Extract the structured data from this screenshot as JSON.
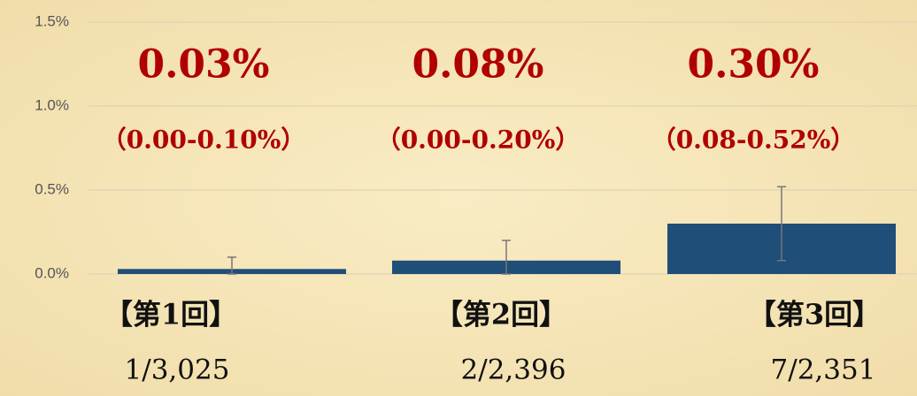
{
  "chart_data": {
    "type": "bar",
    "categories": [
      "【第1回】",
      "【第2回】",
      "【第3回】"
    ],
    "count_labels": [
      "1/3,025",
      "2/2,396",
      "7/2,351"
    ],
    "series": [
      {
        "color": "#1f4e79",
        "values": [
          0.03,
          0.08,
          0.3
        ],
        "value_labels": [
          "0.03%",
          "0.08%",
          "0.30%"
        ],
        "ci_low": [
          0.0,
          0.0,
          0.08
        ],
        "ci_high": [
          0.1,
          0.2,
          0.52
        ],
        "interval_labels": [
          "（0.00-0.10%）",
          "（0.00-0.20%）",
          "（0.08-0.52%）"
        ]
      }
    ],
    "ylim": [
      0,
      1.5
    ],
    "yticks": [
      {
        "value": 0,
        "label": "0.0%"
      },
      {
        "value": 0.5,
        "label": "0.5%"
      },
      {
        "value": 1.0,
        "label": "1.0%"
      },
      {
        "value": 1.5,
        "label": "1.5%"
      }
    ],
    "grid": true
  }
}
